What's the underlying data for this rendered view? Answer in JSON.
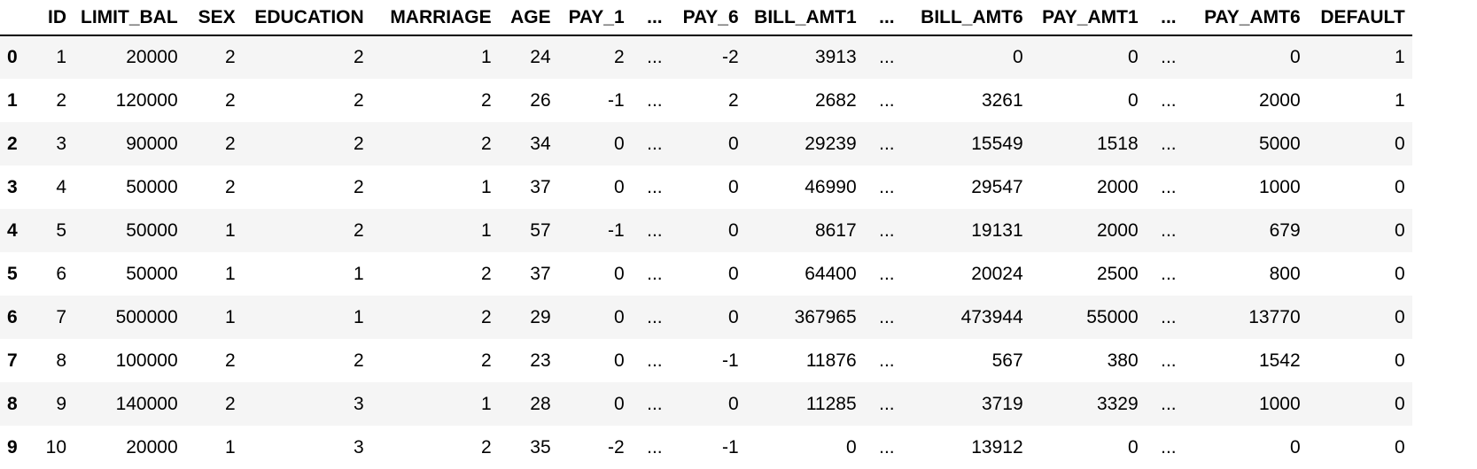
{
  "table": {
    "columns": [
      {
        "key": "index",
        "label": ""
      },
      {
        "key": "ID",
        "label": "ID"
      },
      {
        "key": "LIMIT_BAL",
        "label": "LIMIT_BAL"
      },
      {
        "key": "SEX",
        "label": "SEX"
      },
      {
        "key": "EDUCATION",
        "label": "EDUCATION"
      },
      {
        "key": "MARRIAGE",
        "label": "MARRIAGE"
      },
      {
        "key": "AGE",
        "label": "AGE"
      },
      {
        "key": "PAY_1",
        "label": "PAY_1"
      },
      {
        "key": "ell1",
        "label": "..."
      },
      {
        "key": "PAY_6",
        "label": "PAY_6"
      },
      {
        "key": "BILL_AMT1",
        "label": "BILL_AMT1"
      },
      {
        "key": "ell2",
        "label": "..."
      },
      {
        "key": "BILL_AMT6",
        "label": "BILL_AMT6"
      },
      {
        "key": "PAY_AMT1",
        "label": "PAY_AMT1"
      },
      {
        "key": "ell3",
        "label": "..."
      },
      {
        "key": "PAY_AMT6",
        "label": "PAY_AMT6"
      },
      {
        "key": "DEFAULT",
        "label": "DEFAULT"
      }
    ],
    "rows": [
      [
        "0",
        "1",
        "20000",
        "2",
        "2",
        "1",
        "24",
        "2",
        "...",
        "-2",
        "3913",
        "...",
        "0",
        "0",
        "...",
        "0",
        "1"
      ],
      [
        "1",
        "2",
        "120000",
        "2",
        "2",
        "2",
        "26",
        "-1",
        "...",
        "2",
        "2682",
        "...",
        "3261",
        "0",
        "...",
        "2000",
        "1"
      ],
      [
        "2",
        "3",
        "90000",
        "2",
        "2",
        "2",
        "34",
        "0",
        "...",
        "0",
        "29239",
        "...",
        "15549",
        "1518",
        "...",
        "5000",
        "0"
      ],
      [
        "3",
        "4",
        "50000",
        "2",
        "2",
        "1",
        "37",
        "0",
        "...",
        "0",
        "46990",
        "...",
        "29547",
        "2000",
        "...",
        "1000",
        "0"
      ],
      [
        "4",
        "5",
        "50000",
        "1",
        "2",
        "1",
        "57",
        "-1",
        "...",
        "0",
        "8617",
        "...",
        "19131",
        "2000",
        "...",
        "679",
        "0"
      ],
      [
        "5",
        "6",
        "50000",
        "1",
        "1",
        "2",
        "37",
        "0",
        "...",
        "0",
        "64400",
        "...",
        "20024",
        "2500",
        "...",
        "800",
        "0"
      ],
      [
        "6",
        "7",
        "500000",
        "1",
        "1",
        "2",
        "29",
        "0",
        "...",
        "0",
        "367965",
        "...",
        "473944",
        "55000",
        "...",
        "13770",
        "0"
      ],
      [
        "7",
        "8",
        "100000",
        "2",
        "2",
        "2",
        "23",
        "0",
        "...",
        "-1",
        "11876",
        "...",
        "567",
        "380",
        "...",
        "1542",
        "0"
      ],
      [
        "8",
        "9",
        "140000",
        "2",
        "3",
        "1",
        "28",
        "0",
        "...",
        "0",
        "11285",
        "...",
        "3719",
        "3329",
        "...",
        "1000",
        "0"
      ],
      [
        "9",
        "10",
        "20000",
        "1",
        "3",
        "2",
        "35",
        "-2",
        "...",
        "-1",
        "0",
        "...",
        "13912",
        "0",
        "...",
        "0",
        "0"
      ]
    ]
  }
}
